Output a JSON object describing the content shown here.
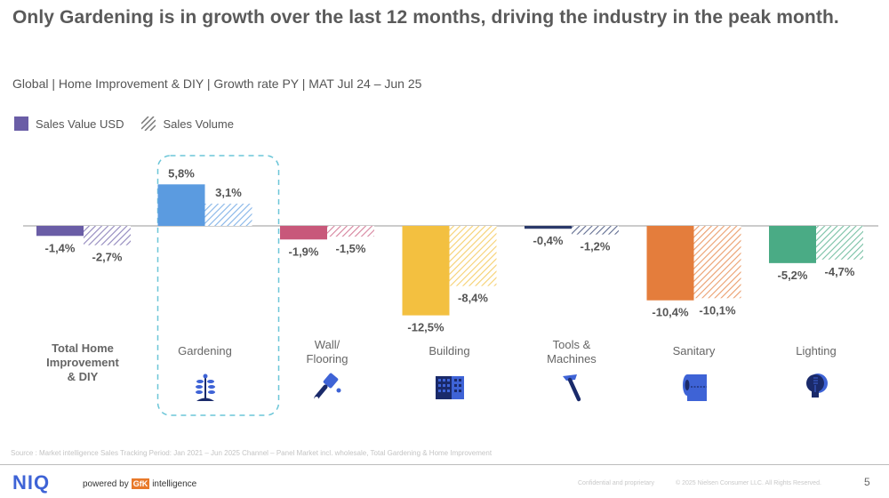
{
  "header": {
    "title": "Only Gardening is in growth over the last 12 months, driving the industry in the peak month.",
    "subtitle": "Global | Home Improvement & DIY | Growth rate PY | MAT Jul 24 – Jun 25"
  },
  "legend": {
    "items": [
      {
        "label": "Sales Value USD",
        "style": "solid",
        "color": "#6a5da6"
      },
      {
        "label": "Sales Volume",
        "style": "hatched",
        "color": "#888888"
      }
    ]
  },
  "chart_data": {
    "type": "bar",
    "title": "Only Gardening is in growth over the last 12 months, driving the industry in the peak month.",
    "subtitle": "Global | Home Improvement & DIY | Growth rate PY | MAT Jul 24 – Jun 25",
    "xlabel": "",
    "ylabel": "Growth rate PY (%)",
    "ylim": [
      -13,
      7
    ],
    "grid": false,
    "legend_position": "top-left",
    "highlight_category": "Gardening",
    "categories": [
      "Total Home Improvement & DIY",
      "Gardening",
      "Wall/ Flooring",
      "Building",
      "Tools & Machines",
      "Sanitary",
      "Lighting"
    ],
    "category_colors": [
      "#6a5da6",
      "#5b9be0",
      "#c8587a",
      "#f3c040",
      "#2a3a6a",
      "#e47d3c",
      "#4aab85"
    ],
    "series": [
      {
        "name": "Sales Value USD",
        "style": "solid",
        "values": [
          -1.4,
          5.8,
          -1.9,
          -12.5,
          -0.4,
          -10.4,
          -5.2
        ]
      },
      {
        "name": "Sales Volume",
        "style": "hatched",
        "values": [
          -2.7,
          3.1,
          -1.5,
          -8.4,
          -1.2,
          -10.1,
          -4.7
        ]
      }
    ],
    "value_labels": {
      "Sales Value USD": [
        "-1,4%",
        "5,8%",
        "-1,9%",
        "-12,5%",
        "-0,4%",
        "-10,4%",
        "-5,2%"
      ],
      "Sales Volume": [
        "-2,7%",
        "3,1%",
        "-1,5%",
        "-8,4%",
        "-1,2%",
        "-10,1%",
        "-4,7%"
      ]
    }
  },
  "categories": [
    {
      "label_lines": [
        "Total Home",
        "Improvement",
        "& DIY"
      ],
      "bold": true,
      "icon": "none"
    },
    {
      "label_lines": [
        "Gardening"
      ],
      "bold": false,
      "icon": "plant-icon"
    },
    {
      "label_lines": [
        "Wall/",
        "Flooring"
      ],
      "bold": false,
      "icon": "paint-brush-icon"
    },
    {
      "label_lines": [
        "Building"
      ],
      "bold": false,
      "icon": "building-icon"
    },
    {
      "label_lines": [
        "Tools &",
        "Machines"
      ],
      "bold": false,
      "icon": "hammer-icon"
    },
    {
      "label_lines": [
        "Sanitary"
      ],
      "bold": false,
      "icon": "toilet-paper-icon"
    },
    {
      "label_lines": [
        "Lighting"
      ],
      "bold": false,
      "icon": "light-bulb-icon"
    }
  ],
  "footer": {
    "source": "Source : Market intelligence Sales Tracking Period: Jan 2021 – Jun 2025 Channel – Panel Market incl. wholesale, Total Gardening & Home Improvement",
    "brand": "NIQ",
    "powered_by": "powered by",
    "gfk": "GfK",
    "intelligence": "intelligence",
    "confidential": "Confidential and proprietary",
    "copyright": "© 2025 Nielsen Consumer LLC. All Rights Reserved.",
    "page_number": "5"
  }
}
